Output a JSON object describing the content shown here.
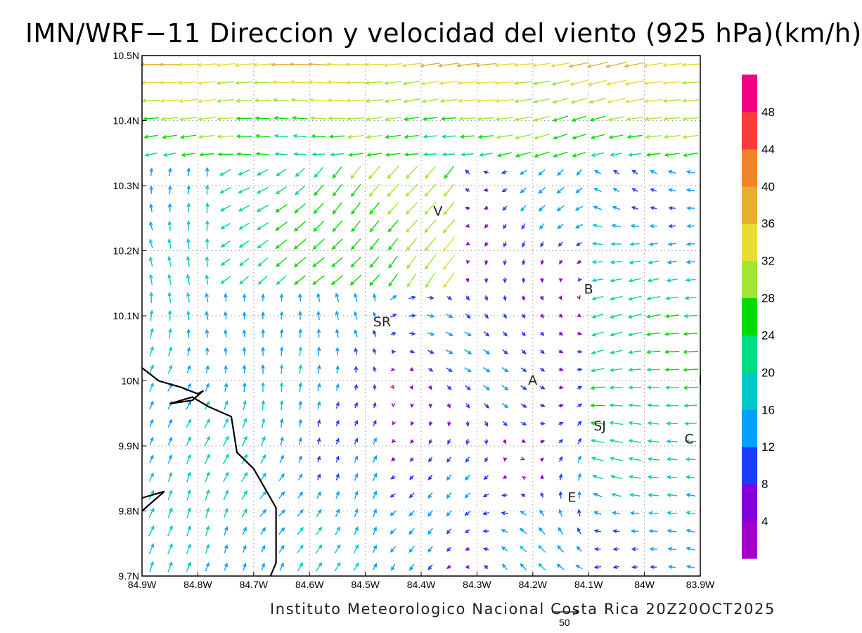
{
  "title": "IMN/WRF−11 Direccion y velocidad del viento (925 hPa)(km/h)",
  "footer": "Instituto Meteorologico Nacional Costa Rica 20Z20OCT2025",
  "reference_vector": {
    "label": "50",
    "speed_kmh": 50
  },
  "axes": {
    "x_ticks": [
      {
        "value": -84.9,
        "label": "84.9W"
      },
      {
        "value": -84.8,
        "label": "84.8W"
      },
      {
        "value": -84.7,
        "label": "84.7W"
      },
      {
        "value": -84.6,
        "label": "84.6W"
      },
      {
        "value": -84.5,
        "label": "84.5W"
      },
      {
        "value": -84.4,
        "label": "84.4W"
      },
      {
        "value": -84.3,
        "label": "84.3W"
      },
      {
        "value": -84.2,
        "label": "84.2W"
      },
      {
        "value": -84.1,
        "label": "84.1W"
      },
      {
        "value": -84.0,
        "label": "84W"
      },
      {
        "value": -83.9,
        "label": "83.9W"
      }
    ],
    "y_ticks": [
      {
        "value": 10.5,
        "label": "10.5N"
      },
      {
        "value": 10.4,
        "label": "10.4N"
      },
      {
        "value": 10.3,
        "label": "10.3N"
      },
      {
        "value": 10.2,
        "label": "10.2N"
      },
      {
        "value": 10.1,
        "label": "10.1N"
      },
      {
        "value": 10.0,
        "label": "10N"
      },
      {
        "value": 9.9,
        "label": "9.9N"
      },
      {
        "value": 9.8,
        "label": "9.8N"
      },
      {
        "value": 9.7,
        "label": "9.7N"
      }
    ],
    "lon_range": [
      -84.9,
      -83.9
    ],
    "lat_range": [
      9.7,
      10.5
    ],
    "grid": true
  },
  "places": [
    {
      "label": "V",
      "lon": -84.37,
      "lat": 10.26
    },
    {
      "label": "B",
      "lon": -84.1,
      "lat": 10.14
    },
    {
      "label": "SR",
      "lon": -84.47,
      "lat": 10.09
    },
    {
      "label": "A",
      "lon": -84.2,
      "lat": 10.0
    },
    {
      "label": "I",
      "lon": -83.9,
      "lat": 10.0
    },
    {
      "label": "SJ",
      "lon": -84.08,
      "lat": 9.93
    },
    {
      "label": "C",
      "lon": -83.92,
      "lat": 9.91
    },
    {
      "label": "E",
      "lon": -84.13,
      "lat": 9.82
    }
  ],
  "coastline": [
    [
      -84.9,
      10.02
    ],
    [
      -84.87,
      10.0
    ],
    [
      -84.83,
      9.99
    ],
    [
      -84.8,
      9.98
    ],
    [
      -84.79,
      9.985
    ],
    [
      -84.81,
      9.97
    ],
    [
      -84.85,
      9.965
    ],
    [
      -84.81,
      9.975
    ],
    [
      -84.78,
      9.96
    ],
    [
      -84.74,
      9.945
    ],
    [
      -84.73,
      9.89
    ],
    [
      -84.7,
      9.865
    ],
    [
      -84.66,
      9.805
    ],
    [
      -84.66,
      9.72
    ],
    [
      -84.67,
      9.7
    ]
  ],
  "coastline_south": [
    [
      -84.9,
      9.8
    ],
    [
      -84.86,
      9.83
    ],
    [
      -84.9,
      9.82
    ]
  ],
  "colorbar": {
    "colors": [
      "#a000c8",
      "#8200dc",
      "#1e3cff",
      "#00a0ff",
      "#00c8c8",
      "#00dc82",
      "#00dc00",
      "#a0e632",
      "#e6dc32",
      "#e6af2d",
      "#f08228",
      "#fa3c3c",
      "#f00082"
    ],
    "labels": [
      "4",
      "8",
      "12",
      "16",
      "20",
      "24",
      "28",
      "32",
      "36",
      "40",
      "44",
      "48"
    ],
    "boundaries": [
      0,
      4,
      8,
      12,
      16,
      20,
      24,
      28,
      32,
      36,
      40,
      44,
      48,
      52
    ]
  }
}
